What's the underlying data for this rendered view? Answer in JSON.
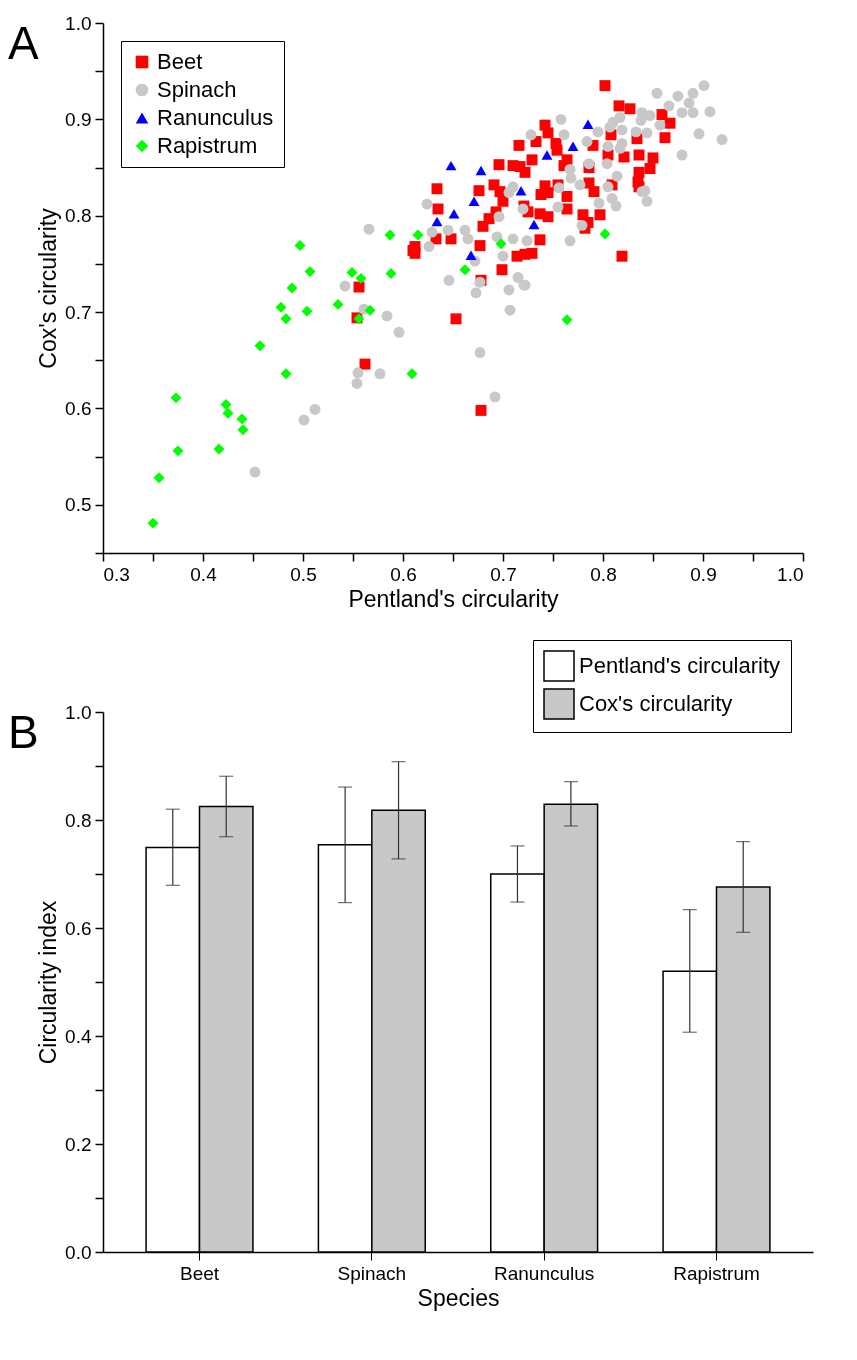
{
  "chart_data": [
    {
      "type": "scatter",
      "annotations": [
        "A"
      ],
      "xlabel": "Pentland's circularity",
      "ylabel": "Cox's circularity",
      "xlim": [
        0.3,
        1.0
      ],
      "ylim": [
        0.45,
        1.0
      ],
      "xticks": [
        0.3,
        {
          "value": 0.35,
          "label": null
        },
        0.4,
        {
          "value": 0.45,
          "label": null
        },
        0.5,
        {
          "value": 0.55,
          "label": null
        },
        0.6,
        {
          "value": 0.65,
          "label": null
        },
        0.7,
        {
          "value": 0.75,
          "label": null
        },
        0.8,
        {
          "value": 0.85,
          "label": null
        },
        0.9,
        {
          "value": 0.95,
          "label": null
        },
        {
          "value": 1,
          "label": "1.0"
        }
      ],
      "yticks": [
        {
          "value": 0.45,
          "label": null
        },
        0.5,
        {
          "value": 0.55,
          "label": null
        },
        0.6,
        {
          "value": 0.65,
          "label": null
        },
        0.7,
        {
          "value": 0.75,
          "label": null
        },
        0.8,
        {
          "value": 0.85,
          "label": null
        },
        0.9,
        {
          "value": 0.95,
          "label": null
        },
        {
          "value": 1,
          "label": "1.0"
        }
      ],
      "grid": false,
      "legend": "top left",
      "series": [
        {
          "name": "Beet",
          "color": "#ff0000",
          "marker": "square",
          "x": [
            0.802,
            0.816,
            0.827,
            0.859,
            0.867,
            0.862,
            0.742,
            0.745,
            0.733,
            0.716,
            0.753,
            0.754,
            0.79,
            0.808,
            0.834,
            0.729,
            0.696,
            0.71,
            0.717,
            0.722,
            0.764,
            0.761,
            0.786,
            0.805,
            0.821,
            0.836,
            0.85,
            0.847,
            0.836,
            0.835,
            0.634,
            0.676,
            0.691,
            0.697,
            0.7,
            0.742,
            0.755,
            0.786,
            0.791,
            0.809,
            0.836,
            0.738,
            0.745,
            0.764,
            0.635,
            0.721,
            0.725,
            0.737,
            0.745,
            0.764,
            0.78,
            0.797,
            0.693,
            0.686,
            0.68,
            0.785,
            0.782,
            0.633,
            0.648,
            0.677,
            0.737,
            0.612,
            0.612,
            0.714,
            0.722,
            0.729,
            0.699,
            0.819,
            0.678,
            0.556,
            0.554,
            0.562,
            0.61,
            0.653,
            0.678
          ],
          "values": [
            0.935,
            0.914,
            0.911,
            0.905,
            0.896,
            0.881,
            0.894,
            0.886,
            0.877,
            0.873,
            0.875,
            0.868,
            0.873,
            0.884,
            0.88,
            0.858,
            0.853,
            0.852,
            0.851,
            0.845,
            0.858,
            0.852,
            0.85,
            0.863,
            0.861,
            0.863,
            0.86,
            0.849,
            0.845,
            0.835,
            0.828,
            0.826,
            0.832,
            0.825,
            0.815,
            0.831,
            0.832,
            0.834,
            0.825,
            0.832,
            0.83,
            0.822,
            0.824,
            0.82,
            0.807,
            0.81,
            0.804,
            0.802,
            0.799,
            0.807,
            0.801,
            0.801,
            0.804,
            0.797,
            0.789,
            0.793,
            0.787,
            0.776,
            0.776,
            0.769,
            0.775,
            0.768,
            0.761,
            0.758,
            0.76,
            0.761,
            0.744,
            0.758,
            0.733,
            0.726,
            0.694,
            0.646,
            0.764,
            0.693,
            0.598
          ]
        },
        {
          "name": "Spinach",
          "color": "#c8c8c8",
          "marker": "circle",
          "x": [
            0.901,
            0.854,
            0.875,
            0.89,
            0.886,
            0.866,
            0.907,
            0.879,
            0.89,
            0.839,
            0.847,
            0.817,
            0.81,
            0.807,
            0.838,
            0.857,
            0.819,
            0.833,
            0.844,
            0.896,
            0.919,
            0.758,
            0.728,
            0.761,
            0.795,
            0.784,
            0.805,
            0.819,
            0.817,
            0.879,
            0.786,
            0.804,
            0.767,
            0.814,
            0.768,
            0.777,
            0.805,
            0.842,
            0.839,
            0.844,
            0.809,
            0.813,
            0.796,
            0.756,
            0.755,
            0.71,
            0.706,
            0.72,
            0.779,
            0.624,
            0.696,
            0.629,
            0.645,
            0.662,
            0.665,
            0.694,
            0.71,
            0.724,
            0.767,
            0.626,
            0.7,
            0.672,
            0.646,
            0.677,
            0.715,
            0.722,
            0.706,
            0.673,
            0.692,
            0.677,
            0.707,
            0.721,
            0.566,
            0.542,
            0.561,
            0.584,
            0.596,
            0.555,
            0.554,
            0.577,
            0.512,
            0.501,
            0.452
          ],
          "values": [
            0.935,
            0.927,
            0.924,
            0.927,
            0.917,
            0.914,
            0.908,
            0.907,
            0.907,
            0.907,
            0.904,
            0.902,
            0.897,
            0.892,
            0.899,
            0.894,
            0.889,
            0.887,
            0.886,
            0.885,
            0.879,
            0.9,
            0.884,
            0.884,
            0.887,
            0.877,
            0.872,
            0.875,
            0.87,
            0.863,
            0.854,
            0.854,
            0.848,
            0.841,
            0.839,
            0.832,
            0.83,
            0.826,
            0.825,
            0.815,
            0.818,
            0.81,
            0.813,
            0.829,
            0.809,
            0.83,
            0.824,
            0.807,
            0.79,
            0.812,
            0.799,
            0.783,
            0.785,
            0.785,
            0.776,
            0.778,
            0.776,
            0.774,
            0.774,
            0.768,
            0.758,
            0.753,
            0.733,
            0.731,
            0.736,
            0.728,
            0.723,
            0.72,
            0.612,
            0.658,
            0.702,
            0.728,
            0.786,
            0.727,
            0.703,
            0.696,
            0.679,
            0.637,
            0.626,
            0.636,
            0.599,
            0.588,
            0.534
          ]
        },
        {
          "name": "Ranunculus",
          "color": "#0000ff",
          "marker": "triangle",
          "x": [
            0.648,
            0.678,
            0.671,
            0.651,
            0.634,
            0.668,
            0.718,
            0.731,
            0.744,
            0.77,
            0.785
          ],
          "values": [
            0.852,
            0.847,
            0.815,
            0.802,
            0.794,
            0.759,
            0.826,
            0.791,
            0.863,
            0.872,
            0.895
          ]
        },
        {
          "name": "Rapistrum",
          "color": "#00ff00",
          "marker": "diamond",
          "x": [
            0.35,
            0.356,
            0.375,
            0.373,
            0.416,
            0.423,
            0.425,
            0.439,
            0.44,
            0.457,
            0.483,
            0.478,
            0.483,
            0.489,
            0.504,
            0.535,
            0.556,
            0.567,
            0.609,
            0.497,
            0.507,
            0.549,
            0.558,
            0.587,
            0.588,
            0.615,
            0.698,
            0.662,
            0.802,
            0.764
          ],
          "values": [
            0.481,
            0.528,
            0.556,
            0.611,
            0.558,
            0.604,
            0.595,
            0.589,
            0.578,
            0.665,
            0.636,
            0.705,
            0.693,
            0.725,
            0.701,
            0.708,
            0.693,
            0.702,
            0.636,
            0.769,
            0.742,
            0.741,
            0.735,
            0.78,
            0.74,
            0.78,
            0.771,
            0.744,
            0.781,
            0.692
          ]
        }
      ]
    },
    {
      "type": "bar",
      "annotations": [
        "B"
      ],
      "xlabel": "Species",
      "ylabel": "Circularity index",
      "categories": [
        "Beet",
        "Spinach",
        "Ranunculus",
        "Rapistrum"
      ],
      "ylim": [
        0,
        1.0
      ],
      "yticks": [
        {
          "value": 0,
          "label": "0.0"
        },
        {
          "value": 0.1,
          "label": null
        },
        0.2,
        {
          "value": 0.3,
          "label": null
        },
        0.4,
        {
          "value": 0.5,
          "label": null
        },
        0.6,
        {
          "value": 0.7,
          "label": null
        },
        0.8,
        {
          "value": 0.9,
          "label": null
        },
        {
          "value": 1,
          "label": "1.0"
        }
      ],
      "grid": false,
      "legend": "top right",
      "series": [
        {
          "name": "Pentland's circularity",
          "color": "#ffffff",
          "values": [
            0.749,
            0.754,
            0.7,
            0.52
          ],
          "errors": [
            [
              0.679,
              0.82
            ],
            [
              0.647,
              0.861
            ],
            [
              0.648,
              0.752
            ],
            [
              0.407,
              0.634
            ]
          ]
        },
        {
          "name": "Cox's circularity",
          "color": "#c8c8c8",
          "values": [
            0.825,
            0.818,
            0.829,
            0.676
          ],
          "errors": [
            [
              0.769,
              0.881
            ],
            [
              0.728,
              0.908
            ],
            [
              0.789,
              0.871
            ],
            [
              0.592,
              0.76
            ]
          ]
        }
      ]
    }
  ]
}
